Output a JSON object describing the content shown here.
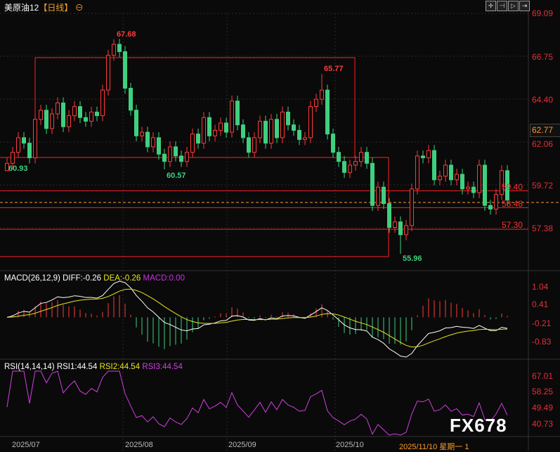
{
  "header": {
    "symbol": "美原油12",
    "period": "【日线】",
    "toolbar": [
      "crosshair",
      "zoom-in",
      "zoom-out",
      "move"
    ]
  },
  "colors": {
    "up": "#ff3b3b",
    "down": "#3fd07f",
    "diff": "#ffffff",
    "dea": "#e6e61e",
    "macd": "#c833e0",
    "rsi1": "#ffffff",
    "rsi2": "#e6e61e",
    "rsi3": "#d040e0",
    "box": "#ff2020",
    "current": "#ff9a2a"
  },
  "chart_data": {
    "type": "candlestick",
    "price_axis": {
      "ticks": [
        "69.09",
        "66.75",
        "64.40",
        "62.06",
        "59.72",
        "57.38"
      ],
      "range": [
        57.38,
        69.09
      ]
    },
    "closes": [
      60.9,
      61.5,
      62.3,
      62.0,
      61.2,
      63.3,
      63.8,
      62.8,
      63.6,
      64.2,
      62.9,
      63.5,
      64.0,
      63.4,
      63.2,
      63.7,
      63.5,
      64.9,
      66.8,
      67.4,
      67.0,
      65.0,
      63.8,
      62.4,
      62.6,
      61.8,
      62.3,
      61.4,
      61.0,
      61.8,
      61.3,
      61.0,
      61.5,
      62.5,
      62.0,
      63.4,
      62.4,
      62.7,
      63.1,
      62.6,
      64.3,
      63.0,
      62.3,
      61.5,
      62.3,
      63.2,
      62.0,
      63.3,
      62.3,
      63.7,
      63.0,
      62.7,
      62.2,
      62.3,
      64.0,
      64.4,
      64.9,
      62.5,
      61.5,
      61.0,
      60.4,
      60.8,
      61.0,
      61.5,
      60.9,
      58.6,
      59.6,
      58.7,
      57.4,
      57.7,
      57.0,
      57.5,
      59.5,
      61.3,
      61.2,
      61.6,
      60.0,
      60.2,
      60.8,
      60.0,
      60.3,
      59.5,
      59.6,
      59.3,
      60.8,
      58.6,
      58.4,
      59.2,
      60.5,
      58.9
    ],
    "annotations": [
      {
        "label": "60.93",
        "index": 0,
        "kind": "low"
      },
      {
        "label": "67.68",
        "index": 19,
        "kind": "high"
      },
      {
        "label": "60.57",
        "index": 28,
        "kind": "low"
      },
      {
        "label": "65.77",
        "index": 56,
        "kind": "high"
      },
      {
        "label": "55.96",
        "index": 70,
        "kind": "low"
      }
    ],
    "levels": [
      {
        "label": "59.40",
        "value": 59.4
      },
      {
        "label": "58.48",
        "value": 58.48
      },
      {
        "label": "57.30",
        "value": 57.3
      }
    ],
    "current_price": "62.77",
    "x_ticks": [
      "2025/07",
      "2025/08",
      "2025/09",
      "2025/10"
    ],
    "cursor_date": "2025/11/10 星期一 1",
    "macd": {
      "label": "MACD(26,12,9)",
      "diff": "DIFF:-0.26",
      "dea": "DEA:-0.26",
      "macd": "MACD:0.00",
      "ticks": [
        "1.04",
        "0.41",
        "-0.21",
        "-0.83"
      ],
      "range": [
        -0.83,
        1.04
      ]
    },
    "rsi": {
      "label": "RSI(14,14,14)",
      "rsi1": "RSI1:44.54",
      "rsi2": "RSI2:44.54",
      "rsi3": "RSI3:44.54",
      "ticks": [
        "67.01",
        "58.25",
        "49.49",
        "40.73"
      ],
      "range": [
        40.73,
        67.01
      ]
    }
  },
  "watermark": "FX678"
}
